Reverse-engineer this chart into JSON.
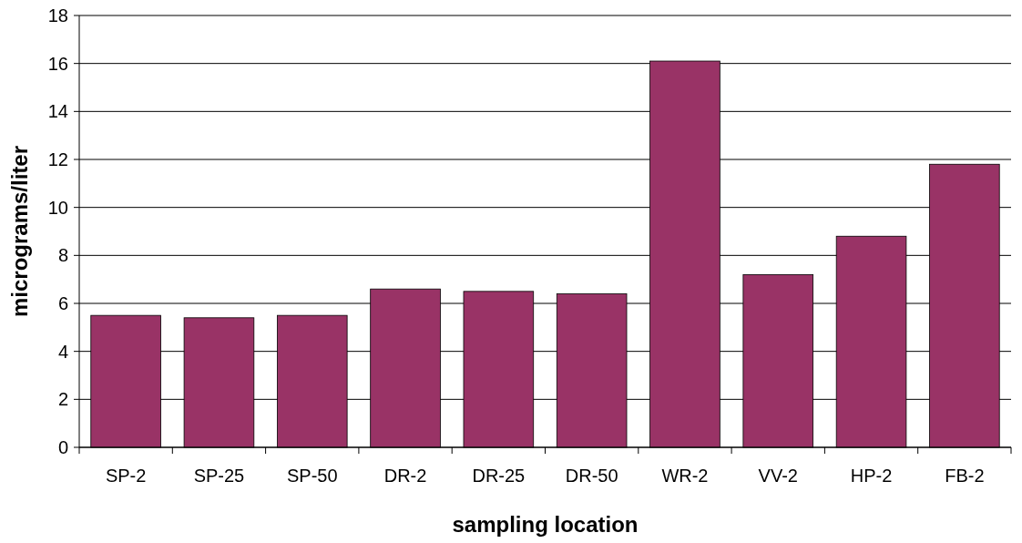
{
  "chart_data": {
    "type": "bar",
    "xlabel": "sampling location",
    "ylabel": "micrograms/liter",
    "categories": [
      "SP-2",
      "SP-25",
      "SP-50",
      "DR-2",
      "DR-25",
      "DR-50",
      "WR-2",
      "VV-2",
      "HP-2",
      "FB-2"
    ],
    "values": [
      5.5,
      5.4,
      5.5,
      6.6,
      6.5,
      6.4,
      16.1,
      7.2,
      8.8,
      11.8
    ],
    "color": "#993366",
    "ylim": [
      0,
      18
    ],
    "yticks": [
      0,
      2,
      4,
      6,
      8,
      10,
      12,
      14,
      16,
      18
    ],
    "grid": "y"
  }
}
